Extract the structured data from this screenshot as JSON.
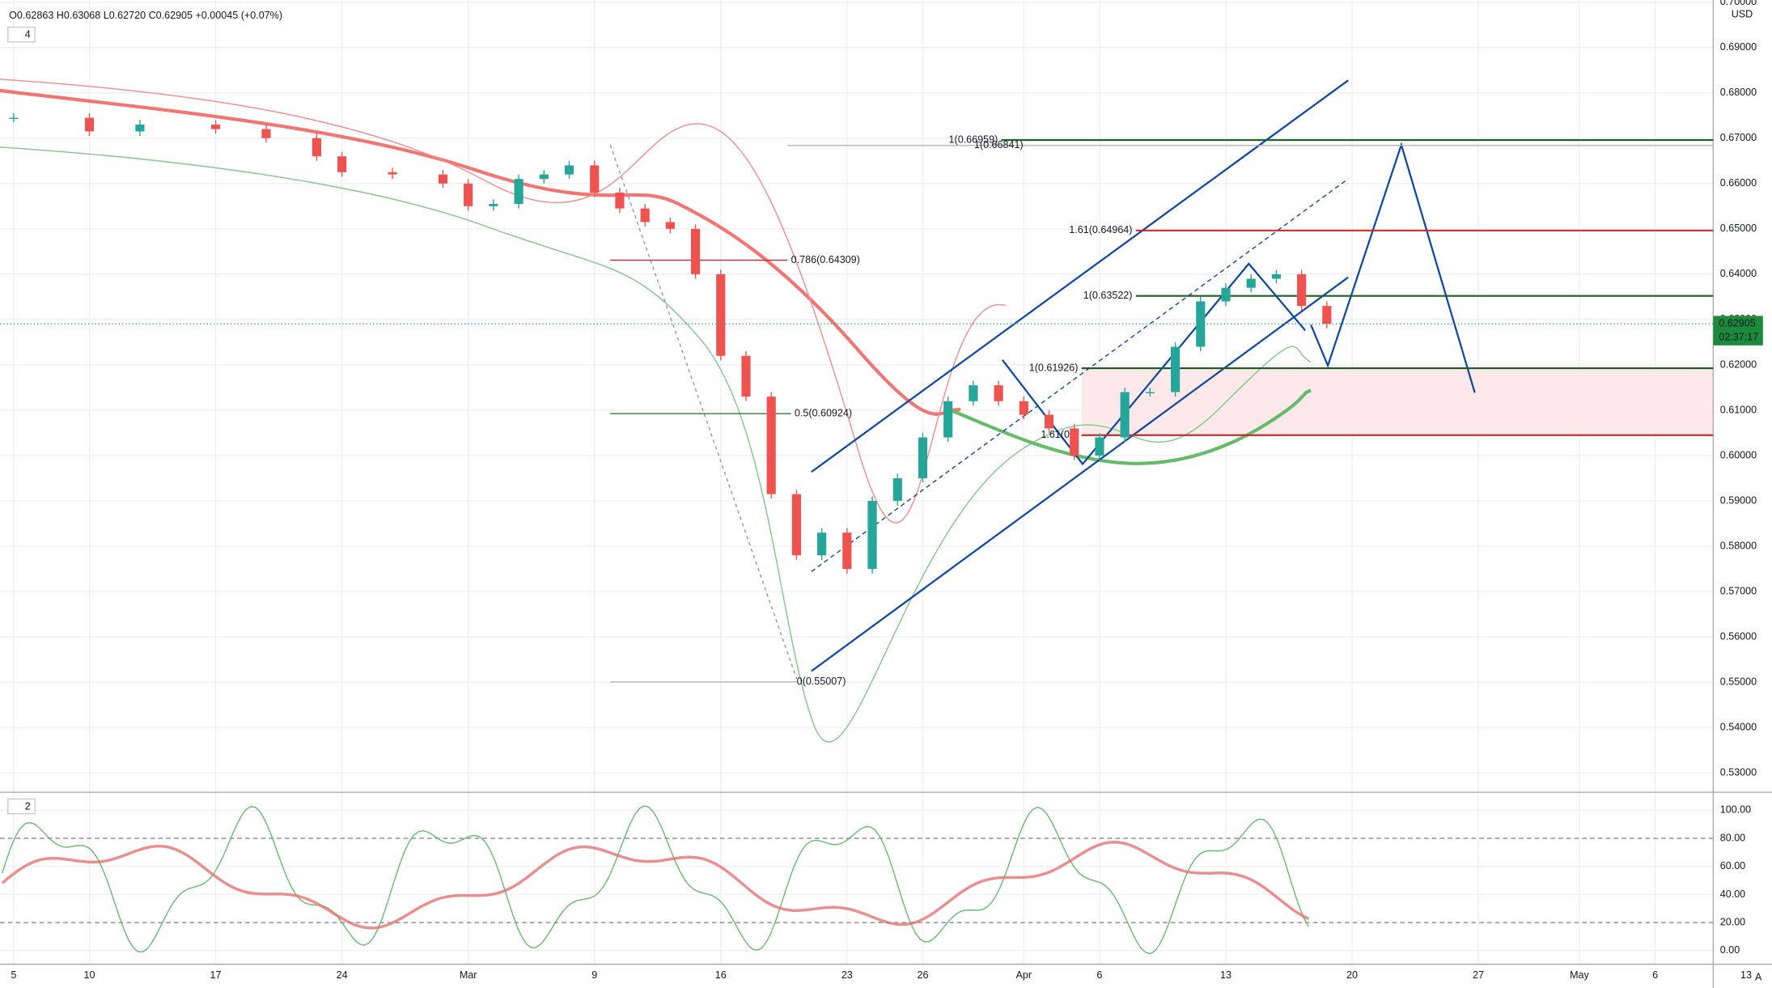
{
  "chart_data": {
    "type": "candlestick",
    "header": "O0.62863 H0.63068 L0.62720 C0.62905 +0.00045 (+0.07%)",
    "indicator_count": "4",
    "oscillator_count": "2",
    "currency": "USD",
    "last_price": {
      "value": 0.62905,
      "label": "0.62905"
    },
    "countdown": "02:37:17",
    "scale_mode": "A",
    "xlim": [
      -0.54,
      67.3
    ],
    "xticks": [
      {
        "value": 0,
        "label": "5"
      },
      {
        "value": 3,
        "label": "10"
      },
      {
        "value": 8,
        "label": "17"
      },
      {
        "value": 13,
        "label": "24"
      },
      {
        "value": 18,
        "label": "Mar"
      },
      {
        "value": 23,
        "label": "9"
      },
      {
        "value": 28,
        "label": "16"
      },
      {
        "value": 33,
        "label": "23"
      },
      {
        "value": 36,
        "label": "26"
      },
      {
        "value": 40,
        "label": "Apr"
      },
      {
        "value": 43,
        "label": "6"
      },
      {
        "value": 48,
        "label": "13"
      },
      {
        "value": 53,
        "label": "20"
      },
      {
        "value": 58,
        "label": "27"
      },
      {
        "value": 62,
        "label": "May"
      },
      {
        "value": 65,
        "label": "6"
      },
      {
        "value": 68.6,
        "label": "13"
      }
    ],
    "ylim": [
      0.52575,
      0.70048
    ],
    "yticks": [
      {
        "value": 0.53,
        "label": "0.53000"
      },
      {
        "value": 0.54,
        "label": "0.54000"
      },
      {
        "value": 0.55,
        "label": "0.55000"
      },
      {
        "value": 0.56,
        "label": "0.56000"
      },
      {
        "value": 0.57,
        "label": "0.57000"
      },
      {
        "value": 0.58,
        "label": "0.58000"
      },
      {
        "value": 0.59,
        "label": "0.59000"
      },
      {
        "value": 0.6,
        "label": "0.60000"
      },
      {
        "value": 0.61,
        "label": "0.61000"
      },
      {
        "value": 0.62,
        "label": "0.62000"
      },
      {
        "value": 0.63,
        "label": "0.63000"
      },
      {
        "value": 0.64,
        "label": "0.64000"
      },
      {
        "value": 0.65,
        "label": "0.65000"
      },
      {
        "value": 0.66,
        "label": "0.66000"
      },
      {
        "value": 0.67,
        "label": "0.67000"
      },
      {
        "value": 0.68,
        "label": "0.68000"
      },
      {
        "value": 0.69,
        "label": "0.69000"
      },
      {
        "value": 0.7,
        "label": "0.70000"
      }
    ],
    "x": [
      0,
      3,
      5,
      8,
      10,
      12,
      13,
      15,
      17,
      18,
      19,
      20,
      21,
      22,
      23,
      24,
      25,
      26,
      27,
      28,
      29,
      30,
      31,
      32,
      33,
      34,
      35,
      36,
      37,
      38,
      39,
      40,
      41,
      42,
      43,
      44,
      45,
      46,
      47,
      48,
      49,
      50,
      51,
      52
    ],
    "close": [
      0.6745,
      0.6715,
      0.673,
      0.672,
      0.67,
      0.666,
      0.6625,
      0.662,
      0.66,
      0.655,
      0.6555,
      0.661,
      0.662,
      0.664,
      0.658,
      0.6545,
      0.6515,
      0.65,
      0.64,
      0.622,
      0.613,
      0.5915,
      0.578,
      0.583,
      0.575,
      0.59,
      0.595,
      0.604,
      0.612,
      0.6155,
      0.612,
      0.609,
      0.606,
      0.6,
      0.604,
      0.614,
      0.614,
      0.624,
      0.634,
      0.637,
      0.639,
      0.64,
      0.633,
      0.62905
    ],
    "levels": [
      {
        "label": "1(0.66841)",
        "value": 0.66841,
        "color": "#b2b5be"
      },
      {
        "label": "0.786(0.64309)",
        "value": 0.64309,
        "color": "#c62828"
      },
      {
        "label": "0.5(0.60924)",
        "value": 0.60924,
        "color": "#2e7d32"
      },
      {
        "label": "0(0.55007)",
        "value": 0.55007,
        "color": "#b2b5be"
      },
      {
        "label": "1(0.66959)",
        "value": 0.66959,
        "color": "#1b5e20"
      },
      {
        "label": "1.61(0.64964)",
        "value": 0.64964,
        "color": "#c62828"
      },
      {
        "label": "1(0.63522)",
        "value": 0.63522,
        "color": "#1b5e20"
      },
      {
        "label": "1(0.61926)",
        "value": 0.61926,
        "color": "#1b5e20"
      },
      {
        "label": "1.61(0.6",
        "value": 0.6045,
        "color": "#c62828"
      }
    ],
    "osc_ylim": [
      -9.68,
      110.48
    ],
    "osc_yticks": [
      {
        "value": 0,
        "label": "0.00"
      },
      {
        "value": 20,
        "label": "20.00"
      },
      {
        "value": 40,
        "label": "40.00"
      },
      {
        "value": 60,
        "label": "60.00"
      },
      {
        "value": 80,
        "label": "80.00"
      },
      {
        "value": 100,
        "label": "100.00"
      }
    ],
    "up_color": "#26a69a",
    "down_color": "#ef5350"
  }
}
